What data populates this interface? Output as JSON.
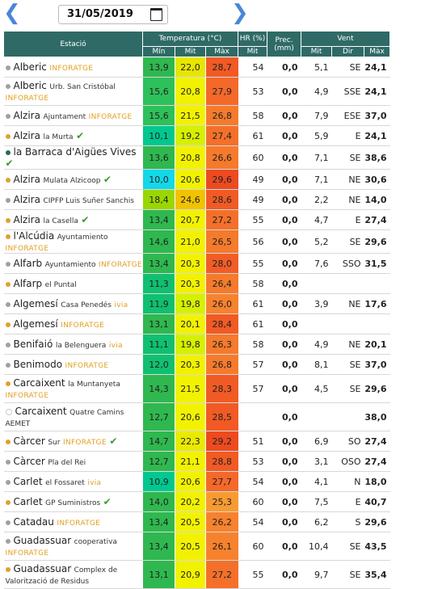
{
  "date": "31/05/2019",
  "header": {
    "estacio": "Estació",
    "temperatura": "Temperatura (°C)",
    "hr": "HR (%)",
    "prec": "Prec.",
    "prec_unit": "(mm)",
    "vent": "Vent",
    "min": "Mín",
    "mit": "Mit",
    "max": "Màx",
    "hr_mit": "Mit",
    "vent_mit": "Mit",
    "vent_dir": "Dir",
    "vent_max": "Màx"
  },
  "colors": {
    "header": "#2f6a66",
    "dot_grey": "#a0a0a0",
    "dot_gold": "#e0a030",
    "dot_green": "#2a6a4a",
    "inforatge": "#e0a020"
  },
  "rows": [
    {
      "city": "Alberic",
      "sub": "",
      "tag": "INFORATGE",
      "dot": "#a0a0a0",
      "check": "",
      "tall": false,
      "min": "13,9",
      "mit": "22,0",
      "max": "28,7",
      "hr": "54",
      "prec": "0,0",
      "vmit": "5,1",
      "dir": "SE",
      "vmax": "24,1",
      "cmin": "#2fb84f",
      "cmit": "#e6e600",
      "cmax": "#f15a24"
    },
    {
      "city": "Alberic",
      "sub": "Urb. San Cristóbal",
      "tag": "INFORATGE",
      "dot": "#a0a0a0",
      "check": "",
      "tall": true,
      "min": "15,6",
      "mit": "20,8",
      "max": "27,9",
      "hr": "53",
      "prec": "0,0",
      "vmit": "4,9",
      "dir": "SSE",
      "vmax": "24,1",
      "cmin": "#2ec05a",
      "cmit": "#f2f200",
      "cmax": "#f4682a"
    },
    {
      "city": "Alzira",
      "sub": "Ajuntament",
      "tag": "INFORATGE",
      "dot": "#a0a0a0",
      "check": "",
      "tall": false,
      "min": "15,6",
      "mit": "21,5",
      "max": "26,8",
      "hr": "58",
      "prec": "0,0",
      "vmit": "7,9",
      "dir": "ESE",
      "vmax": "37,0",
      "cmin": "#2ec05a",
      "cmit": "#f2f200",
      "cmax": "#f57a2c"
    },
    {
      "city": "Alzira",
      "sub": "la Murta",
      "tag": "",
      "dot": "#e0a030",
      "check": "✔",
      "tall": false,
      "min": "10,1",
      "mit": "19,2",
      "max": "27,4",
      "hr": "61",
      "prec": "0,0",
      "vmit": "5,9",
      "dir": "E",
      "vmax": "24,1",
      "cmin": "#00c890",
      "cmit": "#d6f000",
      "cmax": "#f4702a"
    },
    {
      "city": "la Barraca d'Aigües Vives",
      "sub": "",
      "tag": "",
      "dot": "#2a6a4a",
      "check": "✔",
      "tall": false,
      "min": "13,6",
      "mit": "20,8",
      "max": "26,6",
      "hr": "60",
      "prec": "0,0",
      "vmit": "7,1",
      "dir": "SE",
      "vmax": "38,6",
      "cmin": "#2fb84f",
      "cmit": "#f2f200",
      "cmax": "#f57a2c"
    },
    {
      "city": "Alzira",
      "sub": "Mulata Alzicoop",
      "tag": "",
      "dot": "#e0a030",
      "check": "✔",
      "tall": false,
      "min": "10,0",
      "mit": "20,6",
      "max": "29,6",
      "hr": "49",
      "prec": "0,0",
      "vmit": "7,1",
      "dir": "NE",
      "vmax": "30,6",
      "cmin": "#12d8e8",
      "cmit": "#f2f200",
      "cmax": "#ee4a20"
    },
    {
      "city": "Alzira",
      "sub": "CIPFP Luis Suñer Sanchis",
      "tag": "",
      "dot": "#a0a0a0",
      "check": "",
      "tall": false,
      "min": "18,4",
      "mit": "24,6",
      "max": "28,6",
      "hr": "49",
      "prec": "0,0",
      "vmit": "2,2",
      "dir": "NE",
      "vmax": "14,0",
      "cmin": "#9ad600",
      "cmit": "#f2c200",
      "cmax": "#f15a24"
    },
    {
      "city": "Alzira",
      "sub": "la Casella",
      "tag": "",
      "dot": "#e0a030",
      "check": "✔",
      "tall": false,
      "min": "13,4",
      "mit": "20,7",
      "max": "27,2",
      "hr": "55",
      "prec": "0,0",
      "vmit": "4,7",
      "dir": "E",
      "vmax": "27,4",
      "cmin": "#2fb84f",
      "cmit": "#f2f200",
      "cmax": "#f4702a"
    },
    {
      "city": "l'Alcúdia",
      "sub": "Ayuntamiento",
      "tag": "INFORATGE",
      "dot": "#e0a030",
      "check": "",
      "tall": false,
      "min": "14,6",
      "mit": "21,0",
      "max": "26,5",
      "hr": "56",
      "prec": "0,0",
      "vmit": "5,2",
      "dir": "SE",
      "vmax": "29,6",
      "cmin": "#2fb84f",
      "cmit": "#f2f200",
      "cmax": "#f57a2c"
    },
    {
      "city": "Alfarb",
      "sub": "Ayuntamiento",
      "tag": "INFORATGE",
      "dot": "#a0a0a0",
      "check": "",
      "tall": false,
      "min": "13,4",
      "mit": "20,3",
      "max": "28,0",
      "hr": "55",
      "prec": "0,0",
      "vmit": "7,6",
      "dir": "SSO",
      "vmax": "31,5",
      "cmin": "#2fb84f",
      "cmit": "#f2f200",
      "cmax": "#f25c26"
    },
    {
      "city": "Alfarp",
      "sub": "el Puntal",
      "tag": "",
      "dot": "#e0a030",
      "check": "",
      "tall": false,
      "min": "11,3",
      "mit": "20,3",
      "max": "26,4",
      "hr": "58",
      "prec": "0,0",
      "vmit": "",
      "dir": "",
      "vmax": "",
      "cmin": "#10c070",
      "cmit": "#f2f200",
      "cmax": "#f57a2c"
    },
    {
      "city": "Algemesí",
      "sub": "Casa Penedés",
      "tag": "ivia",
      "dot": "#a0a0a0",
      "check": "",
      "tall": false,
      "min": "11,9",
      "mit": "19,8",
      "max": "26,0",
      "hr": "61",
      "prec": "0,0",
      "vmit": "3,9",
      "dir": "NE",
      "vmax": "17,6",
      "cmin": "#10c070",
      "cmit": "#d6f000",
      "cmax": "#f7822e"
    },
    {
      "city": "Algemesí",
      "sub": "",
      "tag": "INFORATGE",
      "dot": "#e0a030",
      "check": "",
      "tall": false,
      "min": "13,1",
      "mit": "20,1",
      "max": "28,4",
      "hr": "61",
      "prec": "0,0",
      "vmit": "",
      "dir": "",
      "vmax": "",
      "cmin": "#2fb84f",
      "cmit": "#f2f200",
      "cmax": "#f15a24"
    },
    {
      "city": "Benifaió",
      "sub": "la Belenguera",
      "tag": "ivia",
      "dot": "#a0a0a0",
      "check": "",
      "tall": false,
      "min": "11,1",
      "mit": "19,8",
      "max": "26,3",
      "hr": "58",
      "prec": "0,0",
      "vmit": "4,9",
      "dir": "NE",
      "vmax": "20,1",
      "cmin": "#10c070",
      "cmit": "#d6f000",
      "cmax": "#f57a2c"
    },
    {
      "city": "Benimodo",
      "sub": "",
      "tag": "INFORATGE",
      "dot": "#a0a0a0",
      "check": "",
      "tall": false,
      "min": "12,0",
      "mit": "20,3",
      "max": "26,8",
      "hr": "57",
      "prec": "0,0",
      "vmit": "8,1",
      "dir": "SE",
      "vmax": "37,0",
      "cmin": "#10c070",
      "cmit": "#f2f200",
      "cmax": "#f57a2c"
    },
    {
      "city": "Carcaixent",
      "sub": "la Muntanyeta",
      "tag": "INFORATGE",
      "dot": "#e0a030",
      "check": "",
      "tall": true,
      "min": "14,3",
      "mit": "21,5",
      "max": "28,3",
      "hr": "57",
      "prec": "0,0",
      "vmit": "4,5",
      "dir": "SE",
      "vmax": "29,6",
      "cmin": "#2fb84f",
      "cmit": "#f2f200",
      "cmax": "#f15a24"
    },
    {
      "city": "Carcaixent",
      "sub": "Quatre Camins AEMET",
      "tag": "",
      "dot": "#ffffff",
      "check": "",
      "tall": true,
      "min": "12,7",
      "mit": "20,6",
      "max": "28,5",
      "hr": "",
      "prec": "0,0",
      "vmit": "",
      "dir": "",
      "vmax": "38,0",
      "cmin": "#2fb84f",
      "cmit": "#f2f200",
      "cmax": "#f15a24"
    },
    {
      "city": "Càrcer",
      "sub": "Sur",
      "tag": "INFORATGE",
      "dot": "#e0a030",
      "check": "✔",
      "tall": false,
      "min": "14,7",
      "mit": "22,3",
      "max": "29,2",
      "hr": "51",
      "prec": "0,0",
      "vmit": "6,9",
      "dir": "SO",
      "vmax": "27,4",
      "cmin": "#2fb84f",
      "cmit": "#eaea00",
      "cmax": "#ee4a20"
    },
    {
      "city": "Càrcer",
      "sub": "Pla del Rei",
      "tag": "",
      "dot": "#a0a0a0",
      "check": "",
      "tall": false,
      "min": "12,7",
      "mit": "21,1",
      "max": "28,8",
      "hr": "53",
      "prec": "0,0",
      "vmit": "3,1",
      "dir": "OSO",
      "vmax": "27,4",
      "cmin": "#2fb84f",
      "cmit": "#f2f200",
      "cmax": "#f15a24"
    },
    {
      "city": "Carlet",
      "sub": "el Fossaret",
      "tag": "ivia",
      "dot": "#a0a0a0",
      "check": "",
      "tall": false,
      "min": "10,9",
      "mit": "20,6",
      "max": "27,7",
      "hr": "54",
      "prec": "0,0",
      "vmit": "4,1",
      "dir": "N",
      "vmax": "18,0",
      "cmin": "#00c890",
      "cmit": "#f2f200",
      "cmax": "#f4682a"
    },
    {
      "city": "Carlet",
      "sub": "GP Suministros",
      "tag": "",
      "dot": "#e0a030",
      "check": "✔",
      "tall": false,
      "min": "14,0",
      "mit": "20,2",
      "max": "25,3",
      "hr": "60",
      "prec": "0,0",
      "vmit": "7,5",
      "dir": "E",
      "vmax": "40,7",
      "cmin": "#2fb84f",
      "cmit": "#f2f200",
      "cmax": "#f89a32"
    },
    {
      "city": "Catadau",
      "sub": "",
      "tag": "INFORATGE",
      "dot": "#a0a0a0",
      "check": "",
      "tall": false,
      "min": "13,4",
      "mit": "20,5",
      "max": "26,2",
      "hr": "54",
      "prec": "0,0",
      "vmit": "6,2",
      "dir": "S",
      "vmax": "29,6",
      "cmin": "#2fb84f",
      "cmit": "#f2f200",
      "cmax": "#f7822e"
    },
    {
      "city": "Guadassuar",
      "sub": "cooperativa",
      "tag": "INFORATGE",
      "dot": "#a0a0a0",
      "check": "",
      "tall": true,
      "min": "13,4",
      "mit": "20,5",
      "max": "26,1",
      "hr": "60",
      "prec": "0,0",
      "vmit": "10,4",
      "dir": "SE",
      "vmax": "43,5",
      "cmin": "#2fb84f",
      "cmit": "#f2f200",
      "cmax": "#f7822e"
    },
    {
      "city": "Guadassuar",
      "sub": "Complex de Valorització de Residus",
      "tag": "",
      "dot": "#e0a030",
      "check": "",
      "tall": true,
      "min": "13,1",
      "mit": "20,9",
      "max": "27,2",
      "hr": "55",
      "prec": "0,0",
      "vmit": "9,7",
      "dir": "SE",
      "vmax": "35,4",
      "cmin": "#2fb84f",
      "cmit": "#f2f200",
      "cmax": "#f4702a"
    }
  ]
}
